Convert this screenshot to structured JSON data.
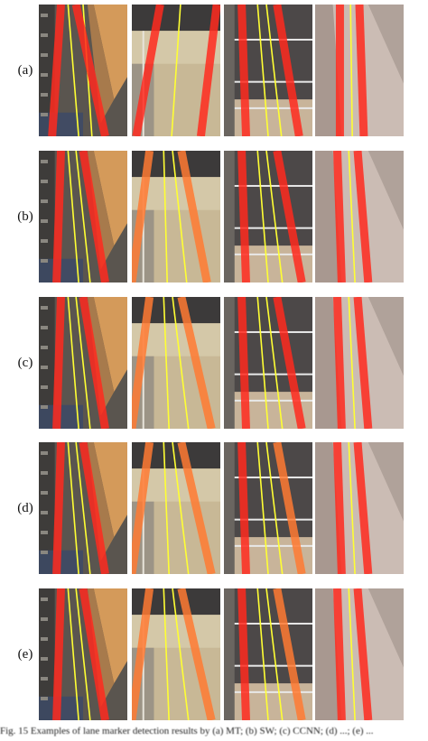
{
  "figure": {
    "rows": [
      {
        "label": "(a)",
        "panels": [
          {
            "scene": "scene-1",
            "lines": [
              {
                "kind": "red",
                "x0": 0.25,
                "x1": 0.15
              },
              {
                "kind": "yellow",
                "x0": 0.33,
                "x1": 0.45
              },
              {
                "kind": "yellow",
                "x0": 0.5,
                "x1": 0.6
              },
              {
                "kind": "red",
                "x0": 0.42,
                "x1": 0.75
              }
            ]
          },
          {
            "scene": "scene-2",
            "lines": [
              {
                "kind": "red",
                "x0": 0.32,
                "x1": 0.05
              },
              {
                "kind": "yellow",
                "x0": 0.55,
                "x1": 0.45
              },
              {
                "kind": "red",
                "x0": 0.96,
                "x1": 0.78
              }
            ]
          },
          {
            "scene": "scene-3",
            "lines": [
              {
                "kind": "red",
                "x0": 0.2,
                "x1": 0.25
              },
              {
                "kind": "yellow",
                "x0": 0.38,
                "x1": 0.5
              },
              {
                "kind": "yellow",
                "x0": 0.48,
                "x1": 0.65
              },
              {
                "kind": "red",
                "x0": 0.6,
                "x1": 0.85
              }
            ]
          },
          {
            "scene": "scene-4",
            "lines": [
              {
                "kind": "red",
                "x0": 0.28,
                "x1": 0.28
              },
              {
                "kind": "yellow",
                "x0": 0.4,
                "x1": 0.42
              },
              {
                "kind": "red",
                "x0": 0.5,
                "x1": 0.55
              }
            ]
          }
        ]
      },
      {
        "label": "(b)",
        "panels": [
          {
            "scene": "scene-1",
            "lines": [
              {
                "kind": "red",
                "x0": 0.25,
                "x1": 0.2
              },
              {
                "kind": "yellow",
                "x0": 0.33,
                "x1": 0.45
              },
              {
                "kind": "yellow",
                "x0": 0.42,
                "x1": 0.58
              },
              {
                "kind": "red",
                "x0": 0.5,
                "x1": 0.75
              }
            ]
          },
          {
            "scene": "scene-2",
            "lines": [
              {
                "kind": "orange",
                "x0": 0.2,
                "x1": 0.0
              },
              {
                "kind": "yellow",
                "x0": 0.36,
                "x1": 0.4
              },
              {
                "kind": "yellow",
                "x0": 0.46,
                "x1": 0.62
              },
              {
                "kind": "orange",
                "x0": 0.56,
                "x1": 0.85
              }
            ]
          },
          {
            "scene": "scene-3",
            "lines": [
              {
                "kind": "red",
                "x0": 0.2,
                "x1": 0.25
              },
              {
                "kind": "yellow",
                "x0": 0.38,
                "x1": 0.5
              },
              {
                "kind": "yellow",
                "x0": 0.48,
                "x1": 0.66
              },
              {
                "kind": "red",
                "x0": 0.6,
                "x1": 0.88
              }
            ]
          },
          {
            "scene": "scene-4",
            "lines": [
              {
                "kind": "red",
                "x0": 0.25,
                "x1": 0.3
              },
              {
                "kind": "yellow",
                "x0": 0.38,
                "x1": 0.45
              },
              {
                "kind": "red",
                "x0": 0.48,
                "x1": 0.6
              }
            ]
          }
        ]
      },
      {
        "label": "(c)",
        "panels": [
          {
            "scene": "scene-1",
            "lines": [
              {
                "kind": "red",
                "x0": 0.25,
                "x1": 0.2
              },
              {
                "kind": "yellow",
                "x0": 0.33,
                "x1": 0.45
              },
              {
                "kind": "yellow",
                "x0": 0.42,
                "x1": 0.58
              },
              {
                "kind": "red",
                "x0": 0.5,
                "x1": 0.75
              }
            ]
          },
          {
            "scene": "scene-2",
            "lines": [
              {
                "kind": "orange",
                "x0": 0.2,
                "x1": 0.0
              },
              {
                "kind": "yellow",
                "x0": 0.36,
                "x1": 0.42
              },
              {
                "kind": "yellow",
                "x0": 0.46,
                "x1": 0.64
              },
              {
                "kind": "orange",
                "x0": 0.56,
                "x1": 0.9
              }
            ]
          },
          {
            "scene": "scene-3",
            "lines": [
              {
                "kind": "red",
                "x0": 0.2,
                "x1": 0.25
              },
              {
                "kind": "yellow",
                "x0": 0.38,
                "x1": 0.5
              },
              {
                "kind": "yellow",
                "x0": 0.48,
                "x1": 0.66
              },
              {
                "kind": "red",
                "x0": 0.6,
                "x1": 0.88
              }
            ]
          },
          {
            "scene": "scene-4",
            "lines": [
              {
                "kind": "red",
                "x0": 0.25,
                "x1": 0.3
              },
              {
                "kind": "yellow",
                "x0": 0.38,
                "x1": 0.45
              },
              {
                "kind": "red",
                "x0": 0.48,
                "x1": 0.6
              }
            ]
          }
        ]
      },
      {
        "label": "(d)",
        "panels": [
          {
            "scene": "scene-1",
            "lines": [
              {
                "kind": "red",
                "x0": 0.25,
                "x1": 0.2
              },
              {
                "kind": "yellow",
                "x0": 0.33,
                "x1": 0.45
              },
              {
                "kind": "yellow",
                "x0": 0.42,
                "x1": 0.58
              },
              {
                "kind": "red",
                "x0": 0.5,
                "x1": 0.75
              }
            ]
          },
          {
            "scene": "scene-2",
            "lines": [
              {
                "kind": "orange",
                "x0": 0.2,
                "x1": 0.0
              },
              {
                "kind": "yellow",
                "x0": 0.36,
                "x1": 0.42
              },
              {
                "kind": "yellow",
                "x0": 0.46,
                "x1": 0.64
              },
              {
                "kind": "orange",
                "x0": 0.56,
                "x1": 0.9
              }
            ]
          },
          {
            "scene": "scene-3",
            "lines": [
              {
                "kind": "red",
                "x0": 0.2,
                "x1": 0.25
              },
              {
                "kind": "yellow",
                "x0": 0.38,
                "x1": 0.5
              },
              {
                "kind": "yellow",
                "x0": 0.48,
                "x1": 0.66
              },
              {
                "kind": "orange",
                "x0": 0.6,
                "x1": 0.88
              }
            ]
          },
          {
            "scene": "scene-4",
            "lines": [
              {
                "kind": "red",
                "x0": 0.25,
                "x1": 0.3
              },
              {
                "kind": "yellow",
                "x0": 0.38,
                "x1": 0.45
              },
              {
                "kind": "red",
                "x0": 0.48,
                "x1": 0.6
              }
            ]
          }
        ]
      },
      {
        "label": "(e)",
        "panels": [
          {
            "scene": "scene-1",
            "lines": [
              {
                "kind": "red",
                "x0": 0.25,
                "x1": 0.2
              },
              {
                "kind": "yellow",
                "x0": 0.33,
                "x1": 0.45
              },
              {
                "kind": "yellow",
                "x0": 0.42,
                "x1": 0.58
              },
              {
                "kind": "red",
                "x0": 0.5,
                "x1": 0.75
              }
            ]
          },
          {
            "scene": "scene-2",
            "lines": [
              {
                "kind": "orange",
                "x0": 0.2,
                "x1": 0.0
              },
              {
                "kind": "yellow",
                "x0": 0.36,
                "x1": 0.42
              },
              {
                "kind": "yellow",
                "x0": 0.46,
                "x1": 0.64
              },
              {
                "kind": "orange",
                "x0": 0.56,
                "x1": 0.9
              }
            ]
          },
          {
            "scene": "scene-3",
            "lines": [
              {
                "kind": "red",
                "x0": 0.2,
                "x1": 0.25
              },
              {
                "kind": "yellow",
                "x0": 0.38,
                "x1": 0.5
              },
              {
                "kind": "yellow",
                "x0": 0.48,
                "x1": 0.66
              },
              {
                "kind": "orange",
                "x0": 0.6,
                "x1": 0.88
              }
            ]
          },
          {
            "scene": "scene-4",
            "lines": [
              {
                "kind": "red",
                "x0": 0.25,
                "x1": 0.3
              },
              {
                "kind": "yellow",
                "x0": 0.38,
                "x1": 0.45
              },
              {
                "kind": "red",
                "x0": 0.48,
                "x1": 0.6
              }
            ]
          }
        ]
      }
    ],
    "caption": "Fig. 15   Examples of lane marker detection results by (a) MT; (b) SW; (c) CCNN; (d) ...; (e) ..."
  },
  "colors": {
    "red": "#ff2a1e",
    "orange": "#ff7a33",
    "yellow": "#ffff33"
  }
}
